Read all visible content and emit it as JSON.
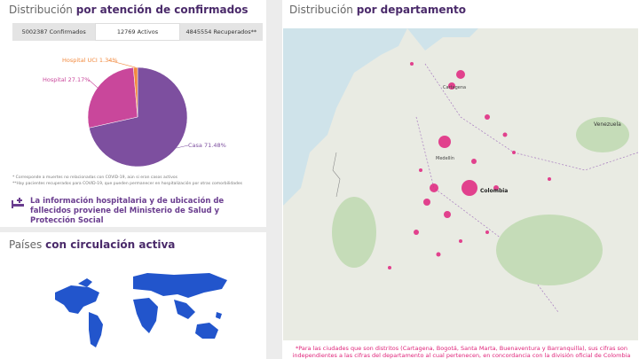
{
  "confirmed_panel": {
    "title_plain": "Distribución",
    "title_bold": "por atención de confirmados",
    "tabs": [
      "5002387 Confirmados",
      "12769 Activos",
      "4845554 Recuperados**"
    ],
    "chart_data": {
      "type": "pie",
      "categories": [
        "Casa",
        "Hospital",
        "Hospital UCI"
      ],
      "values": [
        71.48,
        27.17,
        1.34
      ],
      "value_labels": [
        "71.48%",
        "27.17%",
        "1.34%"
      ],
      "colors": [
        "#7d4f9f",
        "#c9479b",
        "#f28a3f"
      ]
    },
    "notes": [
      "* Corresponde a muertes no relacionadas con COVID-19, aún si eran casos activos",
      "**Hay pacientes recuperados para COVID-19, que pueden permanecer en hospitalización por otras comorbilidades"
    ],
    "info": "La información hospitalaria y de ubicación de fallecidos proviene del Ministerio de Salud y Protección Social"
  },
  "countries_panel": {
    "title_plain": "Países",
    "title_bold": "con circulación activa"
  },
  "department_panel": {
    "title_plain": "Distribución",
    "title_bold": "por departamento",
    "map_labels": [
      "Colombia",
      "Venezuela",
      "Medellín",
      "Cartagena"
    ],
    "footnote": "*Para las ciudades que son distritos (Cartagena, Bogotá, Santa Marta, Buenaventura y Barranquilla), sus cifras son independientes a las cifras del departamento al cual pertenecen, en concordancia con la división oficial de Colombia"
  }
}
